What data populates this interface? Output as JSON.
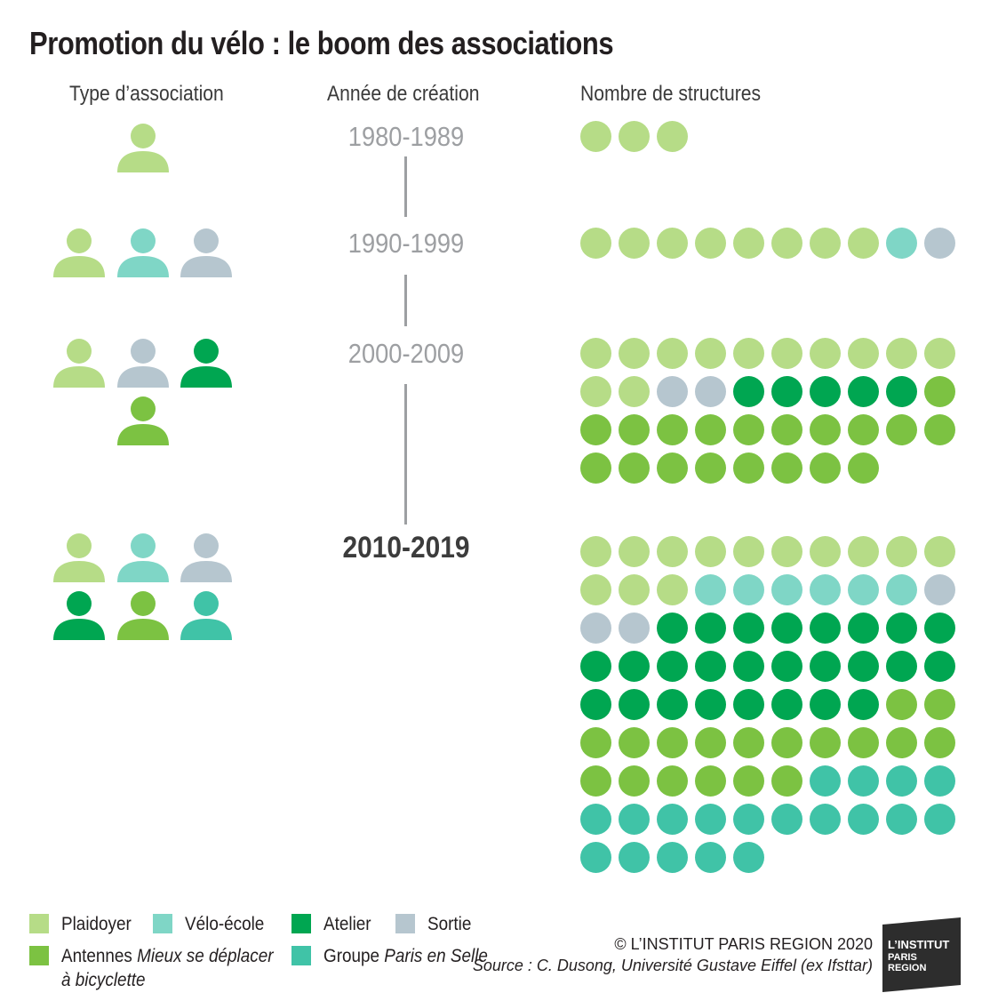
{
  "title": "Promotion du vélo : le boom des associations",
  "columns": {
    "type": "Type d’association",
    "year": "Année de création",
    "count": "Nombre de structures"
  },
  "colors": {
    "plaidoyer": "#b6dc87",
    "velo_ecole": "#7fd6c6",
    "atelier": "#00a651",
    "sortie": "#b6c6cf",
    "antennes": "#7cc242",
    "groupe": "#40c3a7",
    "period_gray": "#9d9fa2"
  },
  "chart_data": {
    "type": "pictogram",
    "title": "Promotion du vélo : le boom des associations",
    "categories": [
      "1980-1989",
      "1990-1999",
      "2000-2009",
      "2010-2019"
    ],
    "series": [
      {
        "name": "Plaidoyer",
        "key": "plaidoyer",
        "values": [
          3,
          8,
          12,
          13
        ]
      },
      {
        "name": "Vélo-école",
        "key": "velo_ecole",
        "values": [
          0,
          1,
          0,
          6
        ]
      },
      {
        "name": "Sortie",
        "key": "sortie",
        "values": [
          0,
          1,
          2,
          3
        ]
      },
      {
        "name": "Atelier",
        "key": "atelier",
        "values": [
          0,
          0,
          5,
          26
        ]
      },
      {
        "name": "Antennes Mieux se déplacer à bicyclette",
        "key": "antennes",
        "values": [
          0,
          0,
          19,
          18
        ]
      },
      {
        "name": "Groupe Paris en Selle",
        "key": "groupe",
        "values": [
          0,
          0,
          0,
          19
        ]
      }
    ],
    "association_types": [
      [
        "plaidoyer"
      ],
      [
        "plaidoyer",
        "velo_ecole",
        "sortie"
      ],
      [
        "plaidoyer",
        "sortie",
        "atelier",
        "antennes"
      ],
      [
        "plaidoyer",
        "velo_ecole",
        "sortie",
        "atelier",
        "antennes",
        "groupe"
      ]
    ],
    "highlighted_period": "2010-2019"
  },
  "legend": [
    {
      "label": "Plaidoyer",
      "italic": "",
      "label2": "",
      "key": "plaidoyer"
    },
    {
      "label": "Vélo-école",
      "italic": "",
      "label2": "",
      "key": "velo_ecole"
    },
    {
      "label": "Atelier",
      "italic": "",
      "label2": "",
      "key": "atelier"
    },
    {
      "label": "Sortie",
      "italic": "",
      "label2": "",
      "key": "sortie"
    },
    {
      "label": "Antennes ",
      "italic": "Mieux se déplacer",
      "label2": "à bicyclette",
      "key": "antennes"
    },
    {
      "label": "Groupe ",
      "italic": "Paris en Selle",
      "label2": "",
      "key": "groupe"
    }
  ],
  "footer": {
    "copyright": "© L’INSTITUT PARIS REGION 2020",
    "source": "Source : C. Dusong, Université Gustave Eiffel (ex Ifsttar)"
  },
  "logo": {
    "line1": "L’INSTITUT",
    "line2": "PARIS",
    "line3": "REGION",
    "color": "#2d2d2d"
  }
}
